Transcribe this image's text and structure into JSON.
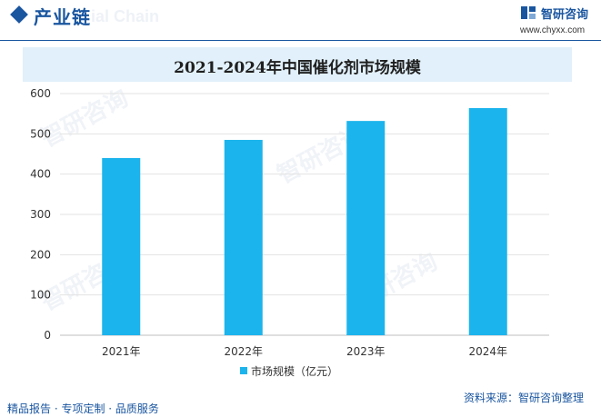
{
  "header": {
    "section_title": "产业链",
    "section_watermark": "ial Chain",
    "brand_name": "智研咨询",
    "brand_url": "www.chyxx.com"
  },
  "footer": {
    "services": "精品报告 · 专项定制 · 品质服务",
    "source": "资料来源：智研咨询整理"
  },
  "colors": {
    "accent": "#1a56a0",
    "bar": "#1cb4ec",
    "title_band": "#e1f0fa"
  },
  "chart_data": {
    "type": "bar",
    "title": "2021-2024年中国催化剂市场规模",
    "categories": [
      "2021年",
      "2022年",
      "2023年",
      "2024年"
    ],
    "series": [
      {
        "name": "市场规模（亿元）",
        "values": [
          440,
          485,
          532,
          564
        ]
      }
    ],
    "ylim": [
      0,
      600
    ],
    "yticks": [
      0,
      100,
      200,
      300,
      400,
      500,
      600
    ],
    "grid": true,
    "legend_position": "bottom"
  }
}
